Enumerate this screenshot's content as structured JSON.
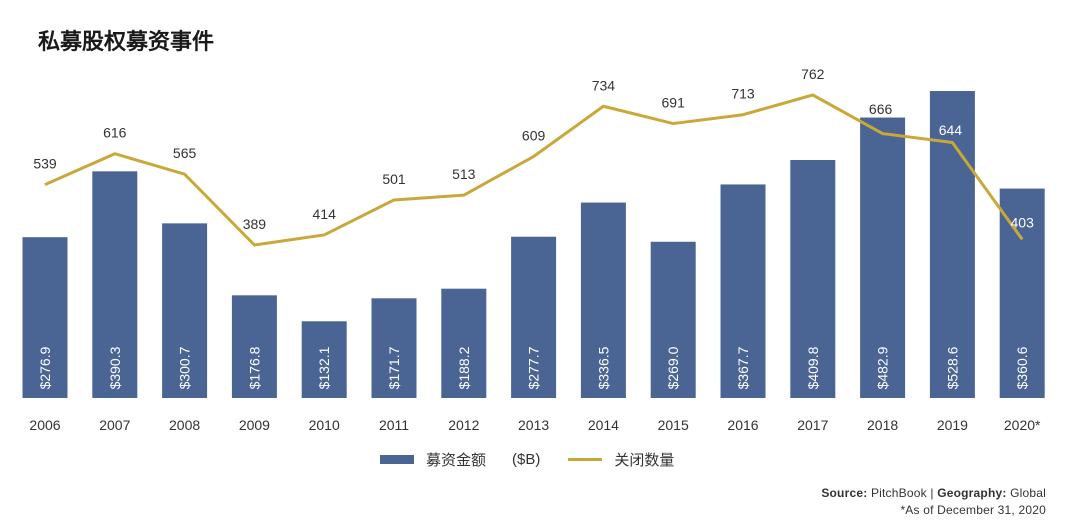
{
  "title": "私募股权募资事件",
  "colors": {
    "bar": "#4a6594",
    "line": "#c9a83a",
    "bar_label": "#ffffff",
    "text": "#333333"
  },
  "legend": {
    "bar_label": "募资金额",
    "unit": "($B)",
    "line_label": "关闭数量"
  },
  "source": {
    "source_key": "Source:",
    "source_value": "PitchBook",
    "separator": "|",
    "geo_key": "Geography:",
    "geo_value": "Global",
    "note": "*As of December 31, 2020"
  },
  "chart_data": {
    "type": "bar",
    "categories": [
      "2006",
      "2007",
      "2008",
      "2009",
      "2010",
      "2011",
      "2012",
      "2013",
      "2014",
      "2015",
      "2016",
      "2017",
      "2018",
      "2019",
      "2020*"
    ],
    "series": [
      {
        "name": "募资金额",
        "type": "bar",
        "values": [
          276.9,
          390.3,
          300.7,
          176.8,
          132.1,
          171.7,
          188.2,
          277.7,
          336.5,
          269.0,
          367.7,
          409.8,
          482.9,
          528.6,
          360.6
        ],
        "labels": [
          "$276.9",
          "$390.3",
          "$300.7",
          "$176.8",
          "$132.1",
          "$171.7",
          "$188.2",
          "$277.7",
          "$336.5",
          "$269.0",
          "$367.7",
          "$409.8",
          "$482.9",
          "$528.6",
          "$360.6"
        ]
      },
      {
        "name": "关闭数量",
        "type": "line",
        "values": [
          539,
          616,
          565,
          389,
          414,
          501,
          513,
          609,
          734,
          691,
          713,
          762,
          666,
          644,
          403
        ],
        "labels": [
          "539",
          "616",
          "565",
          "389",
          "414",
          "501",
          "513",
          "609",
          "734",
          "691",
          "713",
          "762",
          "666",
          "644",
          "403"
        ]
      }
    ],
    "ylim_bar": [
      0,
      540
    ],
    "ylim_line": [
      0,
      850
    ],
    "grid": false,
    "legend_position": "bottom"
  }
}
